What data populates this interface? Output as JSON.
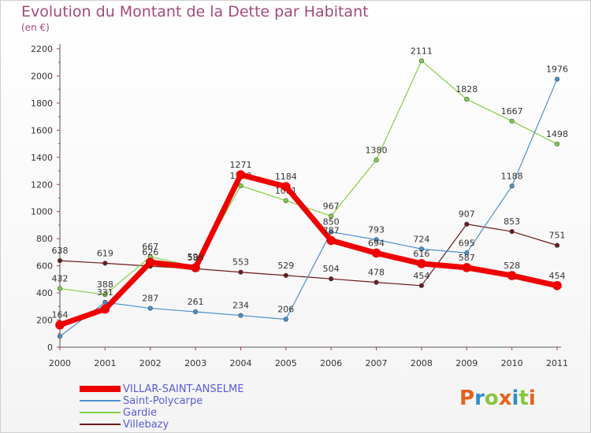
{
  "title": "Evolution du Montant de la Dette par Habitant",
  "unit": "(en €)",
  "logo": {
    "text": "Proxiti",
    "colors": [
      "#e8601a",
      "#2a8fd0",
      "#8ac43f",
      "#e8601a",
      "#2a8fd0",
      "#8ac43f",
      "#e8601a"
    ]
  },
  "chart_data": {
    "type": "line",
    "x": [
      "2000",
      "2001",
      "2002",
      "2003",
      "2004",
      "2005",
      "2006",
      "2007",
      "2008",
      "2009",
      "2010",
      "2011"
    ],
    "ylim": [
      0,
      2200
    ],
    "yticks": [
      "0",
      "200",
      "400",
      "600",
      "800",
      "1000",
      "1200",
      "1400",
      "1600",
      "1800",
      "2000",
      "2200"
    ],
    "grid": false,
    "legend_position": "bottom-left",
    "series": [
      {
        "name": "Villebazy",
        "color": "#6b1a1a",
        "width": 1.2,
        "marker": 2.8,
        "values": [
          638,
          619,
          597,
          579,
          553,
          529,
          504,
          478,
          454,
          907,
          853,
          751
        ],
        "labels": [
          "638",
          "619",
          "",
          "",
          "553",
          "529",
          "504",
          "478",
          "454",
          "907",
          "853",
          "751"
        ]
      },
      {
        "name": "Gardie",
        "color": "#80d040",
        "width": 1.2,
        "marker": 2.8,
        "values": [
          432,
          388,
          667,
          593,
          1190,
          1081,
          967,
          1380,
          2111,
          1828,
          1667,
          1498
        ],
        "labels": [
          "432",
          "388",
          "667",
          "593",
          "1190",
          "1081",
          "967",
          "1380",
          "2111",
          "1828",
          "1667",
          "1498"
        ]
      },
      {
        "name": "Saint-Polycarpe",
        "color": "#4a90d0",
        "width": 1.2,
        "marker": 2.8,
        "values": [
          80,
          331,
          287,
          261,
          234,
          206,
          850,
          793,
          724,
          695,
          1188,
          1976
        ],
        "labels": [
          "",
          "331",
          "287",
          "261",
          "234",
          "206",
          "850",
          "793",
          "724",
          "695",
          "1188",
          "1976"
        ]
      },
      {
        "name": "VILLAR-SAINT-ANSELME",
        "color": "#ee0000",
        "width": 7,
        "marker": 5.5,
        "values": [
          164,
          281,
          626,
          586,
          1271,
          1184,
          787,
          694,
          616,
          587,
          528,
          454
        ],
        "labels": [
          "164",
          "",
          "626",
          "586",
          "1271",
          "1184",
          "787",
          "694",
          "616",
          "587",
          "528",
          "454"
        ]
      }
    ]
  }
}
